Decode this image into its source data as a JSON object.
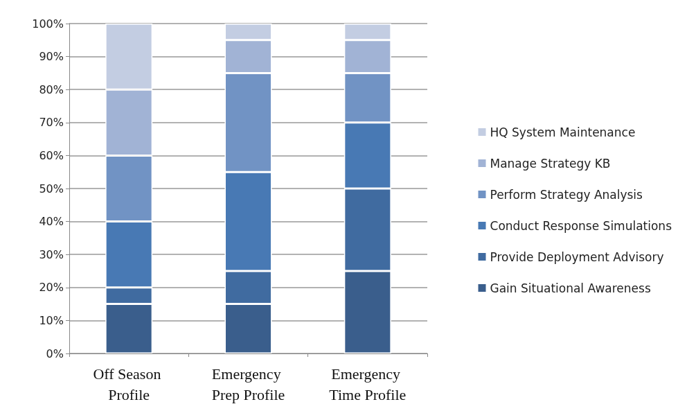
{
  "chart_data": {
    "type": "bar",
    "stacked": true,
    "categories": [
      "Off Season Profile",
      "Emergency Prep Profile",
      "Emergency Time Profile"
    ],
    "series": [
      {
        "name": "Gain Situational Awareness",
        "color": "#3a5e8c",
        "values": [
          15,
          15,
          25
        ]
      },
      {
        "name": "Provide Deployment Advisory",
        "color": "#406ba0",
        "values": [
          5,
          10,
          25
        ]
      },
      {
        "name": "Conduct Response Simulations",
        "color": "#4879b4",
        "values": [
          20,
          30,
          20
        ]
      },
      {
        "name": "Perform Strategy Analysis",
        "color": "#7193c4",
        "values": [
          20,
          30,
          15
        ]
      },
      {
        "name": "Manage Strategy KB",
        "color": "#a1b3d5",
        "values": [
          20,
          10,
          10
        ]
      },
      {
        "name": "HQ System Maintenance",
        "color": "#c3cde2",
        "values": [
          20,
          5,
          5
        ]
      }
    ],
    "ylim": [
      0,
      100
    ],
    "yticks": [
      {
        "value": 0,
        "label": "0%"
      },
      {
        "value": 10,
        "label": "10%"
      },
      {
        "value": 20,
        "label": "20%"
      },
      {
        "value": 30,
        "label": "30%"
      },
      {
        "value": 40,
        "label": "40%"
      },
      {
        "value": 50,
        "label": "50%"
      },
      {
        "value": 60,
        "label": "60%"
      },
      {
        "value": 70,
        "label": "70%"
      },
      {
        "value": 80,
        "label": "80%"
      },
      {
        "value": 90,
        "label": "90%"
      },
      {
        "value": 100,
        "label": "100%"
      }
    ],
    "grid": "y",
    "legend": "right"
  }
}
